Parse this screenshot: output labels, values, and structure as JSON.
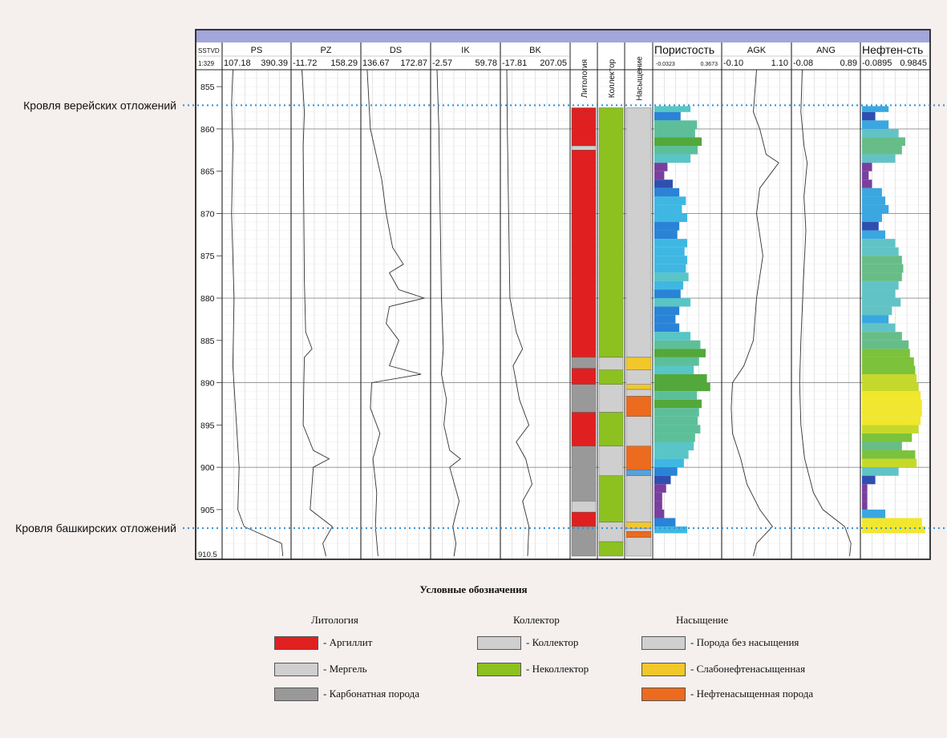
{
  "chart_data": {
    "type": "well-log",
    "depth_unit_header": "SSTVD",
    "scale": "1:329",
    "depth_range": [
      853,
      910.5
    ],
    "depth_ticks": [
      855,
      860,
      865,
      870,
      875,
      880,
      885,
      890,
      895,
      900,
      905
    ],
    "depth_bottom_label": "910.5",
    "markers": [
      {
        "label": "Кровля верейских отложений",
        "depth": 857.2
      },
      {
        "label": "Кровля башкирских отложений",
        "depth": 907.2
      }
    ],
    "curve_tracks": [
      {
        "name": "PS",
        "min": "107.18",
        "max": "390.39",
        "points": [
          [
            853,
            0.12
          ],
          [
            857,
            0.1
          ],
          [
            862,
            0.12
          ],
          [
            870,
            0.1
          ],
          [
            880,
            0.14
          ],
          [
            888,
            0.12
          ],
          [
            894,
            0.17
          ],
          [
            900,
            0.22
          ],
          [
            905,
            0.2
          ],
          [
            907,
            0.3
          ],
          [
            909,
            0.9
          ],
          [
            910.5,
            0.92
          ]
        ]
      },
      {
        "name": "PZ",
        "min": "-11.72",
        "max": "158.29",
        "points": [
          [
            853,
            0.12
          ],
          [
            858,
            0.16
          ],
          [
            862,
            0.14
          ],
          [
            870,
            0.15
          ],
          [
            878,
            0.16
          ],
          [
            884,
            0.18
          ],
          [
            886,
            0.28
          ],
          [
            887,
            0.16
          ],
          [
            890,
            0.15
          ],
          [
            895,
            0.14
          ],
          [
            898,
            0.3
          ],
          [
            899,
            0.55
          ],
          [
            900,
            0.3
          ],
          [
            905,
            0.25
          ],
          [
            907,
            0.6
          ],
          [
            909,
            0.45
          ],
          [
            910.5,
            0.5
          ]
        ]
      },
      {
        "name": "DS",
        "min": "136.67",
        "max": "172.87",
        "points": [
          [
            853,
            0.05
          ],
          [
            860,
            0.1
          ],
          [
            866,
            0.28
          ],
          [
            870,
            0.35
          ],
          [
            874,
            0.45
          ],
          [
            876,
            0.62
          ],
          [
            877,
            0.4
          ],
          [
            879,
            0.55
          ],
          [
            880,
            0.95
          ],
          [
            881,
            0.4
          ],
          [
            883,
            0.35
          ],
          [
            885,
            0.55
          ],
          [
            888,
            0.4
          ],
          [
            889,
            0.9
          ],
          [
            890,
            0.12
          ],
          [
            893,
            0.1
          ],
          [
            896,
            0.25
          ],
          [
            899,
            0.14
          ],
          [
            903,
            0.2
          ],
          [
            907,
            0.18
          ],
          [
            910.5,
            0.22
          ]
        ]
      },
      {
        "name": "IK",
        "min": "-2.57",
        "max": "59.78",
        "points": [
          [
            853,
            0.05
          ],
          [
            860,
            0.08
          ],
          [
            870,
            0.1
          ],
          [
            880,
            0.12
          ],
          [
            886,
            0.15
          ],
          [
            889,
            0.12
          ],
          [
            892,
            0.2
          ],
          [
            895,
            0.16
          ],
          [
            898,
            0.25
          ],
          [
            899,
            0.42
          ],
          [
            900,
            0.25
          ],
          [
            904,
            0.4
          ],
          [
            907,
            0.3
          ],
          [
            909,
            0.35
          ],
          [
            910.5,
            0.32
          ]
        ]
      },
      {
        "name": "BK",
        "min": "-17.81",
        "max": "207.05",
        "points": [
          [
            853,
            0.05
          ],
          [
            860,
            0.06
          ],
          [
            870,
            0.08
          ],
          [
            880,
            0.1
          ],
          [
            884,
            0.2
          ],
          [
            886,
            0.3
          ],
          [
            888,
            0.15
          ],
          [
            892,
            0.25
          ],
          [
            895,
            0.4
          ],
          [
            897,
            0.2
          ],
          [
            899,
            0.35
          ],
          [
            902,
            0.45
          ],
          [
            904,
            0.3
          ],
          [
            907,
            0.4
          ],
          [
            910.5,
            0.38
          ]
        ]
      }
    ],
    "lithology_tracks": [
      {
        "name": "Литология",
        "intervals": [
          [
            857.5,
            858,
            "#e02020"
          ],
          [
            858,
            862,
            "#e02020"
          ],
          [
            862,
            862.5,
            "#cfcfcf"
          ],
          [
            862.5,
            887,
            "#e02020"
          ],
          [
            887,
            888.3,
            "#999999"
          ],
          [
            888.3,
            890.2,
            "#e02020"
          ],
          [
            890.2,
            893.5,
            "#999999"
          ],
          [
            893.5,
            897.5,
            "#e02020"
          ],
          [
            897.5,
            904,
            "#999999"
          ],
          [
            904,
            905.3,
            "#cfcfcf"
          ],
          [
            905.3,
            907,
            "#e02020"
          ],
          [
            907,
            910.5,
            "#999999"
          ]
        ]
      },
      {
        "name": "Коллектор",
        "intervals": [
          [
            857.5,
            887,
            "#8cc11f"
          ],
          [
            887,
            888.5,
            "#cfcfcf"
          ],
          [
            888.5,
            890.2,
            "#8cc11f"
          ],
          [
            890.2,
            893.5,
            "#cfcfcf"
          ],
          [
            893.5,
            897.5,
            "#8cc11f"
          ],
          [
            897.5,
            901,
            "#cfcfcf"
          ],
          [
            901,
            906.5,
            "#8cc11f"
          ],
          [
            906.5,
            908.8,
            "#cfcfcf"
          ],
          [
            908.8,
            910.5,
            "#8cc11f"
          ]
        ]
      },
      {
        "name": "Насыщение",
        "intervals": [
          [
            857.5,
            887,
            "#cfcfcf"
          ],
          [
            887,
            888.5,
            "#f2c72a"
          ],
          [
            888.5,
            890.2,
            "#cfcfcf"
          ],
          [
            890.2,
            890.8,
            "#f2c72a"
          ],
          [
            890.8,
            891.6,
            "#cfcfcf"
          ],
          [
            891.6,
            894,
            "#ec6b1e"
          ],
          [
            894,
            897.5,
            "#cfcfcf"
          ],
          [
            897.5,
            900.3,
            "#ec6b1e"
          ],
          [
            900.3,
            901,
            "#5aa0d6"
          ],
          [
            901,
            906.5,
            "#cfcfcf"
          ],
          [
            906.5,
            907.2,
            "#f2c72a"
          ],
          [
            907.2,
            907.6,
            "#cfcfcf"
          ],
          [
            907.6,
            908.3,
            "#ec6b1e"
          ],
          [
            908.3,
            910.5,
            "#cfcfcf"
          ]
        ]
      }
    ],
    "porosity": {
      "name": "Пористость",
      "min": "-0.0323",
      "max": "0.3673",
      "bars": [
        [
          857.3,
          0.55
        ],
        [
          858,
          0.4
        ],
        [
          859,
          0.65
        ],
        [
          860,
          0.62
        ],
        [
          861,
          0.72
        ],
        [
          862,
          0.66
        ],
        [
          863,
          0.55
        ],
        [
          864,
          0.2
        ],
        [
          865,
          0.15
        ],
        [
          866,
          0.28
        ],
        [
          867,
          0.38
        ],
        [
          868,
          0.48
        ],
        [
          869,
          0.42
        ],
        [
          870,
          0.5
        ],
        [
          871,
          0.38
        ],
        [
          872,
          0.35
        ],
        [
          873,
          0.5
        ],
        [
          874,
          0.46
        ],
        [
          875,
          0.5
        ],
        [
          876,
          0.48
        ],
        [
          877,
          0.52
        ],
        [
          878,
          0.44
        ],
        [
          879,
          0.4
        ],
        [
          880,
          0.55
        ],
        [
          881,
          0.38
        ],
        [
          882,
          0.32
        ],
        [
          883,
          0.38
        ],
        [
          884,
          0.55
        ],
        [
          885,
          0.7
        ],
        [
          886,
          0.78
        ],
        [
          887,
          0.68
        ],
        [
          888,
          0.6
        ],
        [
          889,
          0.8
        ],
        [
          890,
          0.85
        ],
        [
          891,
          0.65
        ],
        [
          892,
          0.72
        ],
        [
          893,
          0.68
        ],
        [
          894,
          0.66
        ],
        [
          895,
          0.7
        ],
        [
          896,
          0.62
        ],
        [
          897,
          0.6
        ],
        [
          898,
          0.52
        ],
        [
          899,
          0.45
        ],
        [
          900,
          0.35
        ],
        [
          901,
          0.25
        ],
        [
          902,
          0.18
        ],
        [
          903,
          0.12
        ],
        [
          904,
          0.12
        ],
        [
          905,
          0.15
        ],
        [
          906,
          0.32
        ],
        [
          907,
          0.5
        ]
      ]
    },
    "logging_tracks": [
      {
        "name": "AGK",
        "min": "-0.10",
        "max": "1.10",
        "points": [
          [
            853,
            0.5
          ],
          [
            858,
            0.45
          ],
          [
            860,
            0.55
          ],
          [
            863,
            0.65
          ],
          [
            864,
            0.85
          ],
          [
            865,
            0.75
          ],
          [
            867,
            0.55
          ],
          [
            870,
            0.5
          ],
          [
            875,
            0.6
          ],
          [
            880,
            0.5
          ],
          [
            885,
            0.45
          ],
          [
            888,
            0.3
          ],
          [
            890,
            0.12
          ],
          [
            893,
            0.1
          ],
          [
            896,
            0.12
          ],
          [
            899,
            0.25
          ],
          [
            902,
            0.35
          ],
          [
            905,
            0.55
          ],
          [
            907,
            0.75
          ],
          [
            909,
            0.5
          ],
          [
            910.5,
            0.45
          ]
        ]
      },
      {
        "name": "ANG",
        "min": "-0.08",
        "max": "0.89",
        "points": [
          [
            853,
            0.12
          ],
          [
            858,
            0.1
          ],
          [
            862,
            0.15
          ],
          [
            864,
            0.2
          ],
          [
            868,
            0.15
          ],
          [
            872,
            0.18
          ],
          [
            878,
            0.14
          ],
          [
            885,
            0.1
          ],
          [
            890,
            0.08
          ],
          [
            895,
            0.1
          ],
          [
            899,
            0.16
          ],
          [
            903,
            0.3
          ],
          [
            905,
            0.45
          ],
          [
            907,
            0.8
          ],
          [
            909,
            0.9
          ],
          [
            910.5,
            0.88
          ]
        ]
      }
    ],
    "oil_saturation": {
      "name": "Нефтен-сть",
      "min": "-0.0895",
      "max": "0.9845",
      "bars": [
        [
          857.3,
          0.4
        ],
        [
          858,
          0.2
        ],
        [
          859,
          0.4
        ],
        [
          860,
          0.55
        ],
        [
          861,
          0.65
        ],
        [
          862,
          0.6
        ],
        [
          863,
          0.5
        ],
        [
          864,
          0.15
        ],
        [
          865,
          0.1
        ],
        [
          866,
          0.15
        ],
        [
          867,
          0.3
        ],
        [
          868,
          0.35
        ],
        [
          869,
          0.4
        ],
        [
          870,
          0.3
        ],
        [
          871,
          0.25
        ],
        [
          872,
          0.35
        ],
        [
          873,
          0.5
        ],
        [
          874,
          0.55
        ],
        [
          875,
          0.6
        ],
        [
          876,
          0.62
        ],
        [
          877,
          0.6
        ],
        [
          878,
          0.55
        ],
        [
          879,
          0.5
        ],
        [
          880,
          0.58
        ],
        [
          881,
          0.45
        ],
        [
          882,
          0.4
        ],
        [
          883,
          0.5
        ],
        [
          884,
          0.6
        ],
        [
          885,
          0.7
        ],
        [
          886,
          0.72
        ],
        [
          887,
          0.78
        ],
        [
          888,
          0.8
        ],
        [
          889,
          0.82
        ],
        [
          890,
          0.85
        ],
        [
          891,
          0.88
        ],
        [
          892,
          0.9
        ],
        [
          893,
          0.9
        ],
        [
          894,
          0.88
        ],
        [
          895,
          0.85
        ],
        [
          896,
          0.75
        ],
        [
          897,
          0.6
        ],
        [
          898,
          0.8
        ],
        [
          899,
          0.82
        ],
        [
          900,
          0.55
        ],
        [
          901,
          0.2
        ],
        [
          902,
          0.08
        ],
        [
          903,
          0.08
        ],
        [
          904,
          0.08
        ],
        [
          905,
          0.35
        ],
        [
          906,
          0.9
        ],
        [
          907,
          0.95
        ]
      ]
    }
  },
  "legend": {
    "title": "Условные обозначения",
    "groups": [
      {
        "heading": "Литология",
        "items": [
          {
            "label": "- Аргиллит",
            "color": "#e02020"
          },
          {
            "label": "- Мергель",
            "color": "#cfcfcf"
          },
          {
            "label": "- Карбонатная порода",
            "color": "#999999"
          }
        ]
      },
      {
        "heading": "Коллектор",
        "items": [
          {
            "label": "- Коллектор",
            "color": "#cfcfcf"
          },
          {
            "label": "- Неколлектор",
            "color": "#8cc11f"
          }
        ]
      },
      {
        "heading": "Насыщение",
        "items": [
          {
            "label": "- Порода без насыщения",
            "color": "#cfcfcf"
          },
          {
            "label": "- Слабонефтенасыщенная",
            "color": "#f2c72a"
          },
          {
            "label": "- Нефтенасыщенная порода",
            "color": "#ec6b1e"
          }
        ]
      }
    ]
  },
  "colors": {
    "header_bar": "#a3a6da",
    "marker_line": "#2f8fd6",
    "grid": "#b0b0b0",
    "curve": "#333333"
  }
}
